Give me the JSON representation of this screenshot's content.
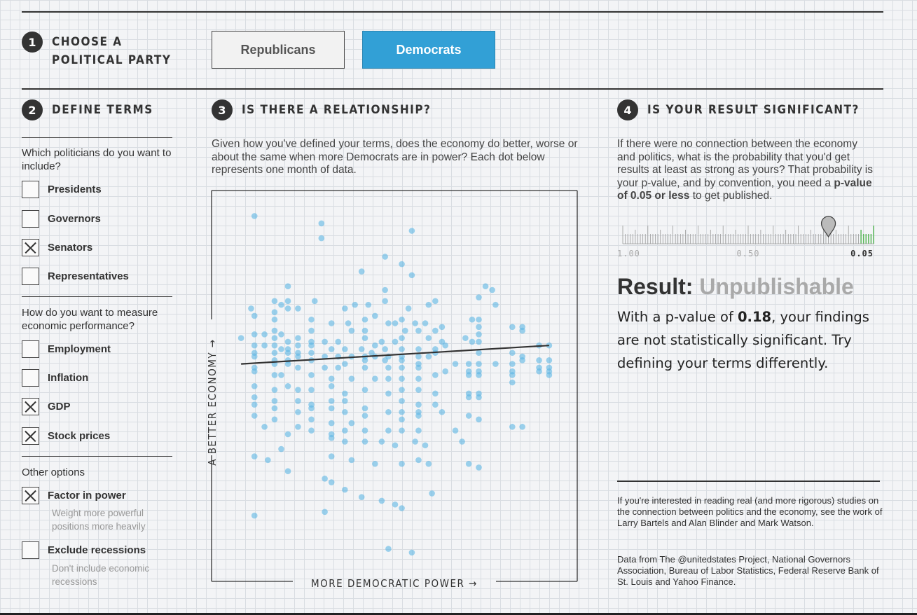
{
  "step1": {
    "number": "1",
    "title_line1": "CHOOSE A",
    "title_line2": "POLITICAL PARTY"
  },
  "party": {
    "options": [
      "Republicans",
      "Democrats"
    ],
    "selected": "Democrats"
  },
  "step2": {
    "number": "2",
    "title": "DEFINE TERMS"
  },
  "politicians": {
    "question": "Which politicians do you want to include?",
    "items": [
      {
        "label": "Presidents",
        "checked": false
      },
      {
        "label": "Governors",
        "checked": false
      },
      {
        "label": "Senators",
        "checked": true
      },
      {
        "label": "Representatives",
        "checked": false
      }
    ]
  },
  "economy": {
    "question": "How do you want to measure economic performance?",
    "items": [
      {
        "label": "Employment",
        "checked": false
      },
      {
        "label": "Inflation",
        "checked": false
      },
      {
        "label": "GDP",
        "checked": true
      },
      {
        "label": "Stock prices",
        "checked": true
      }
    ]
  },
  "options": {
    "heading": "Other options",
    "items": [
      {
        "label": "Factor in power",
        "checked": true,
        "sub": "Weight more powerful positions more heavily"
      },
      {
        "label": "Exclude recessions",
        "checked": false,
        "sub": "Don't include economic recessions"
      }
    ]
  },
  "step3": {
    "number": "3",
    "title": "IS THERE A RELATIONSHIP?",
    "description": "Given how you've defined your terms, does the economy do better, worse or about the same when more Democrats are in power? Each dot below represents one month of data."
  },
  "chart_data": {
    "type": "scatter",
    "xlabel": "MORE DEMOCRATIC POWER →",
    "ylabel": "A BETTER ECONOMY →",
    "xlim": [
      0,
      100
    ],
    "ylim": [
      0,
      100
    ],
    "point_color": "#5db6e4",
    "trend_line": {
      "x": [
        4,
        96
      ],
      "y": [
        55,
        60
      ]
    },
    "points": [
      [
        8,
        95
      ],
      [
        28,
        93
      ],
      [
        55,
        91
      ],
      [
        28,
        89
      ],
      [
        47,
        84
      ],
      [
        52,
        82
      ],
      [
        40,
        80
      ],
      [
        18,
        76
      ],
      [
        77,
        76
      ],
      [
        79,
        75
      ],
      [
        47,
        75
      ],
      [
        55,
        79
      ],
      [
        75,
        73
      ],
      [
        14,
        72
      ],
      [
        18,
        70
      ],
      [
        80,
        71
      ],
      [
        26,
        72
      ],
      [
        62,
        72
      ],
      [
        60,
        71
      ],
      [
        14,
        69
      ],
      [
        16,
        71
      ],
      [
        18,
        72
      ],
      [
        21,
        70
      ],
      [
        54,
        70
      ],
      [
        35,
        70
      ],
      [
        38,
        71
      ],
      [
        42,
        71
      ],
      [
        47,
        72
      ],
      [
        7,
        70
      ],
      [
        8,
        68
      ],
      [
        14,
        67
      ],
      [
        25,
        67
      ],
      [
        31,
        66
      ],
      [
        36,
        66
      ],
      [
        41,
        67
      ],
      [
        44,
        68
      ],
      [
        48,
        66
      ],
      [
        50,
        66
      ],
      [
        52,
        67
      ],
      [
        56,
        66
      ],
      [
        59,
        66
      ],
      [
        64,
        65
      ],
      [
        73,
        67
      ],
      [
        75,
        67
      ],
      [
        75,
        65
      ],
      [
        85,
        65
      ],
      [
        88,
        65
      ],
      [
        14,
        64
      ],
      [
        25,
        64
      ],
      [
        37,
        64
      ],
      [
        41,
        64
      ],
      [
        53,
        64
      ],
      [
        57,
        64
      ],
      [
        62,
        64
      ],
      [
        75,
        63
      ],
      [
        88,
        64
      ],
      [
        16,
        63
      ],
      [
        4,
        62
      ],
      [
        8,
        63
      ],
      [
        11,
        63
      ],
      [
        14,
        62
      ],
      [
        18,
        61
      ],
      [
        21,
        62
      ],
      [
        25,
        61
      ],
      [
        29,
        61
      ],
      [
        33,
        61
      ],
      [
        41,
        62
      ],
      [
        44,
        60
      ],
      [
        46,
        61
      ],
      [
        50,
        61
      ],
      [
        52,
        62
      ],
      [
        60,
        62
      ],
      [
        64,
        61
      ],
      [
        71,
        62
      ],
      [
        75,
        61
      ],
      [
        93,
        60
      ],
      [
        96,
        60
      ],
      [
        8,
        60
      ],
      [
        11,
        60
      ],
      [
        14,
        60
      ],
      [
        16,
        59
      ],
      [
        18,
        59
      ],
      [
        21,
        60
      ],
      [
        25,
        60
      ],
      [
        31,
        59
      ],
      [
        35,
        59
      ],
      [
        40,
        59
      ],
      [
        43,
        58
      ],
      [
        47,
        59
      ],
      [
        52,
        59
      ],
      [
        57,
        59
      ],
      [
        62,
        58
      ],
      [
        73,
        61
      ],
      [
        8,
        58
      ],
      [
        14,
        58
      ],
      [
        18,
        58
      ],
      [
        21,
        58
      ],
      [
        25,
        58
      ],
      [
        29,
        57
      ],
      [
        33,
        57
      ],
      [
        37,
        57
      ],
      [
        41,
        57
      ],
      [
        44,
        57
      ],
      [
        48,
        57
      ],
      [
        52,
        57
      ],
      [
        57,
        57
      ],
      [
        60,
        57
      ],
      [
        62,
        59
      ],
      [
        65,
        60
      ],
      [
        75,
        58
      ],
      [
        85,
        58
      ],
      [
        88,
        57
      ],
      [
        93,
        56
      ],
      [
        96,
        56
      ],
      [
        8,
        57
      ],
      [
        14,
        56
      ],
      [
        18,
        56
      ],
      [
        21,
        57
      ],
      [
        25,
        56
      ],
      [
        35,
        55
      ],
      [
        41,
        56
      ],
      [
        47,
        56
      ],
      [
        52,
        56
      ],
      [
        57,
        55
      ],
      [
        68,
        55
      ],
      [
        72,
        55
      ],
      [
        75,
        55
      ],
      [
        80,
        55
      ],
      [
        85,
        55
      ],
      [
        88,
        56
      ],
      [
        93,
        54
      ],
      [
        96,
        54
      ],
      [
        8,
        54
      ],
      [
        14,
        55
      ],
      [
        18,
        55
      ],
      [
        21,
        54
      ],
      [
        29,
        54
      ],
      [
        33,
        54
      ],
      [
        41,
        54
      ],
      [
        48,
        54
      ],
      [
        52,
        54
      ],
      [
        57,
        54
      ],
      [
        65,
        53
      ],
      [
        72,
        53
      ],
      [
        75,
        53
      ],
      [
        85,
        53
      ],
      [
        93,
        53
      ],
      [
        96,
        53
      ],
      [
        8,
        53
      ],
      [
        14,
        52
      ],
      [
        16,
        52
      ],
      [
        25,
        52
      ],
      [
        31,
        51
      ],
      [
        37,
        51
      ],
      [
        44,
        51
      ],
      [
        48,
        51
      ],
      [
        52,
        51
      ],
      [
        57,
        51
      ],
      [
        62,
        52
      ],
      [
        72,
        52
      ],
      [
        75,
        52
      ],
      [
        85,
        52
      ],
      [
        96,
        52
      ],
      [
        8,
        49
      ],
      [
        14,
        48
      ],
      [
        18,
        49
      ],
      [
        21,
        48
      ],
      [
        25,
        48
      ],
      [
        31,
        49
      ],
      [
        35,
        47
      ],
      [
        41,
        48
      ],
      [
        48,
        47
      ],
      [
        52,
        48
      ],
      [
        57,
        48
      ],
      [
        62,
        47
      ],
      [
        72,
        47
      ],
      [
        75,
        47
      ],
      [
        85,
        50
      ],
      [
        8,
        46
      ],
      [
        14,
        45
      ],
      [
        21,
        45
      ],
      [
        25,
        44
      ],
      [
        31,
        45
      ],
      [
        35,
        45
      ],
      [
        41,
        43
      ],
      [
        48,
        42
      ],
      [
        52,
        45
      ],
      [
        57,
        44
      ],
      [
        62,
        44
      ],
      [
        72,
        46
      ],
      [
        75,
        46
      ],
      [
        8,
        44
      ],
      [
        14,
        43
      ],
      [
        21,
        42
      ],
      [
        25,
        43
      ],
      [
        31,
        43
      ],
      [
        35,
        42
      ],
      [
        41,
        41
      ],
      [
        52,
        42
      ],
      [
        57,
        42
      ],
      [
        64,
        42
      ],
      [
        72,
        41
      ],
      [
        75,
        40
      ],
      [
        8,
        41
      ],
      [
        14,
        40
      ],
      [
        25,
        40
      ],
      [
        31,
        39
      ],
      [
        37,
        39
      ],
      [
        52,
        40
      ],
      [
        57,
        41
      ],
      [
        11,
        38
      ],
      [
        21,
        38
      ],
      [
        25,
        37
      ],
      [
        31,
        36
      ],
      [
        35,
        37
      ],
      [
        41,
        37
      ],
      [
        48,
        37
      ],
      [
        52,
        37
      ],
      [
        57,
        37
      ],
      [
        68,
        37
      ],
      [
        85,
        38
      ],
      [
        88,
        38
      ],
      [
        18,
        36
      ],
      [
        31,
        35
      ],
      [
        35,
        34
      ],
      [
        41,
        34
      ],
      [
        46,
        34
      ],
      [
        50,
        33
      ],
      [
        56,
        34
      ],
      [
        59,
        33
      ],
      [
        70,
        34
      ],
      [
        16,
        32
      ],
      [
        31,
        30
      ],
      [
        37,
        29
      ],
      [
        44,
        28
      ],
      [
        52,
        28
      ],
      [
        57,
        29
      ],
      [
        60,
        28
      ],
      [
        72,
        28
      ],
      [
        75,
        27
      ],
      [
        8,
        30
      ],
      [
        12,
        29
      ],
      [
        18,
        26
      ],
      [
        29,
        24
      ],
      [
        31,
        23
      ],
      [
        35,
        21
      ],
      [
        40,
        19
      ],
      [
        46,
        18
      ],
      [
        50,
        17
      ],
      [
        52,
        16
      ],
      [
        61,
        20
      ],
      [
        8,
        14
      ],
      [
        29,
        15
      ],
      [
        48,
        5
      ],
      [
        55,
        4
      ]
    ]
  },
  "step4": {
    "number": "4",
    "title": "IS YOUR RESULT SIGNIFICANT?",
    "description_before": "If there were no connection between the economy and politics, what is the probability that you'd get results at least as strong as yours? That probability is your p-value, and by convention, you need a ",
    "description_bold": "p-value of 0.05 or less",
    "description_after": " to get published."
  },
  "pvalue_scale": {
    "labels": [
      "1.00",
      "0.50",
      "0.05"
    ],
    "marker_value": 0.18,
    "significant_color": "#5cb85c"
  },
  "result": {
    "label": "Result:",
    "verdict": "Unpublishable",
    "body_before": "With a p-value of ",
    "pvalue": "0.18",
    "body_after": ", your findings are not statistically significant. Try defining your terms differently."
  },
  "footer": {
    "note": "If you're interested in reading real (and more rigorous) studies on the connection between politics and the economy, see the work of Larry Bartels and Alan Blinder and Mark Watson.",
    "sources": "Data from The @unitedstates Project, National Governors Association, Bureau of Labor Statistics, Federal Reserve Bank of St. Louis and Yahoo Finance."
  }
}
